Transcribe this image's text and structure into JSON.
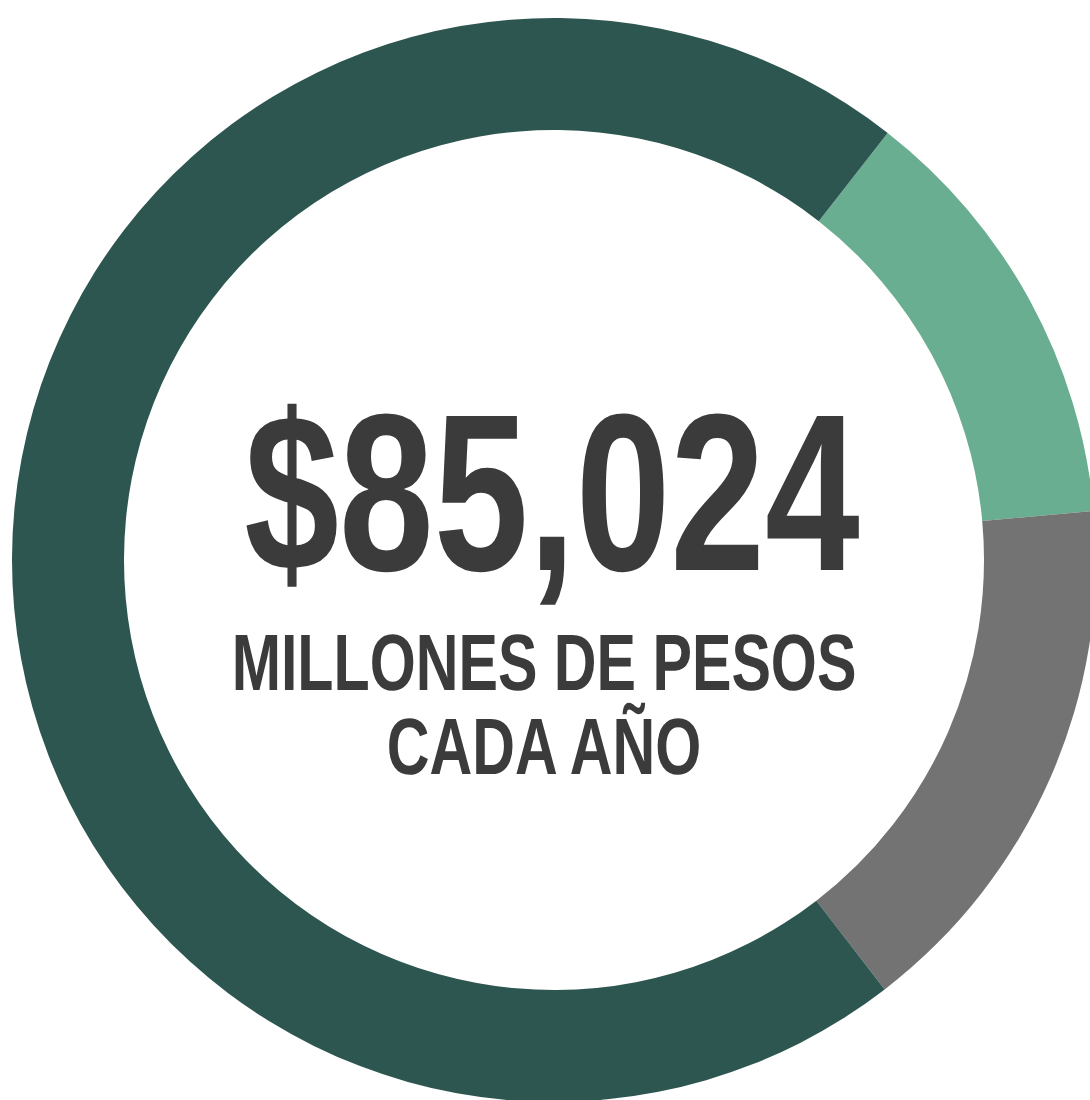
{
  "chart_data": {
    "type": "donut",
    "categories": [
      null,
      null,
      null
    ],
    "values": [
      13,
      16,
      71
    ],
    "colors": [
      "#6aae92",
      "#737373",
      "#2d5650"
    ],
    "annotations": [
      "$85,024",
      "MILLONES DE PESOS",
      "CADA AÑO"
    ]
  }
}
